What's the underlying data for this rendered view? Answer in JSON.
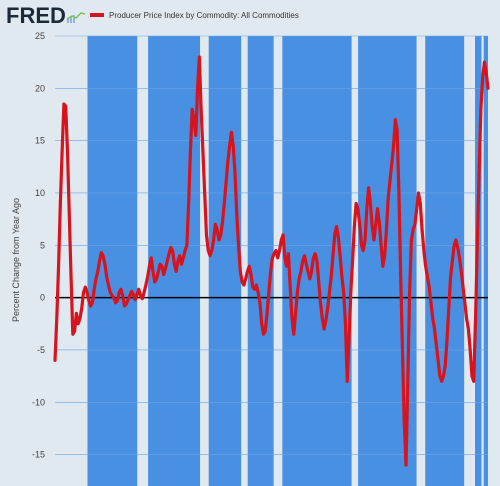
{
  "header": {
    "logo_text": "FRED",
    "logo_icon": "chart-logo-icon"
  },
  "chart_data": {
    "type": "line",
    "title": "",
    "xlabel": "",
    "ylabel": "Percent Change from Year Ago",
    "ylim": [
      -18,
      25
    ],
    "yticks": [
      25,
      20,
      15,
      10,
      5,
      0,
      -5,
      -10,
      -15
    ],
    "grid": true,
    "legend_position": "top-left",
    "background_color": "#4a90e2",
    "line_color": "#d6141e",
    "recession_color": "#e1e9f0",
    "series": [
      {
        "name": "Producer Price Index by Commodity: All Commodities",
        "values": [
          -6.0,
          -2.0,
          3.0,
          9.0,
          14.0,
          18.5,
          18.3,
          14.0,
          8.0,
          2.0,
          -3.5,
          -3.2,
          -1.5,
          -2.5,
          -2.0,
          -1.0,
          0.5,
          1.0,
          0.5,
          -0.3,
          -0.8,
          -0.5,
          0.8,
          1.8,
          2.5,
          3.5,
          4.3,
          4.0,
          3.2,
          2.0,
          1.2,
          0.5,
          0.2,
          0.0,
          -0.5,
          -0.3,
          0.5,
          0.8,
          0.2,
          -0.8,
          -0.6,
          -0.2,
          0.2,
          0.6,
          0.3,
          -0.2,
          0.3,
          0.8,
          0.2,
          -0.1,
          0.5,
          1.2,
          2.0,
          3.0,
          3.8,
          2.5,
          1.5,
          1.8,
          2.5,
          3.2,
          3.0,
          2.2,
          2.8,
          3.5,
          4.2,
          4.8,
          4.5,
          3.2,
          2.5,
          3.5,
          4.0,
          3.2,
          3.8,
          4.5,
          5.0,
          9.0,
          14.0,
          18.0,
          17.0,
          15.5,
          20.0,
          23.0,
          18.0,
          14.0,
          10.0,
          6.0,
          4.5,
          4.0,
          4.5,
          5.5,
          7.0,
          6.5,
          5.5,
          6.0,
          7.2,
          9.0,
          11.0,
          13.0,
          14.5,
          15.8,
          14.5,
          12.0,
          8.0,
          5.0,
          2.5,
          1.5,
          1.2,
          1.8,
          2.5,
          3.0,
          2.2,
          1.0,
          0.8,
          1.2,
          0.5,
          -0.5,
          -2.5,
          -3.5,
          -3.2,
          -1.5,
          0.5,
          2.5,
          3.8,
          4.2,
          4.5,
          3.8,
          4.5,
          5.5,
          6.0,
          3.8,
          3.0,
          4.2,
          1.0,
          -2.0,
          -3.5,
          -1.5,
          0.5,
          1.8,
          2.5,
          3.5,
          4.0,
          3.2,
          2.5,
          1.8,
          2.5,
          3.8,
          4.2,
          3.5,
          1.5,
          -0.5,
          -2.0,
          -3.0,
          -2.2,
          -1.0,
          0.5,
          2.0,
          4.0,
          6.0,
          6.8,
          5.8,
          4.0,
          2.0,
          0.5,
          -2.5,
          -8.0,
          -4.0,
          0.5,
          3.5,
          6.8,
          9.0,
          8.5,
          7.0,
          5.0,
          4.5,
          5.5,
          8.5,
          10.5,
          9.0,
          6.8,
          5.5,
          7.0,
          8.5,
          7.2,
          5.0,
          3.0,
          4.0,
          6.5,
          9.5,
          11.2,
          12.8,
          14.5,
          17.0,
          16.0,
          10.0,
          2.0,
          -5.0,
          -12.0,
          -16.0,
          -8.0,
          0.5,
          5.5,
          6.5,
          7.0,
          8.5,
          10.0,
          9.0,
          6.5,
          4.5,
          3.0,
          2.0,
          1.0,
          -0.5,
          -2.0,
          -3.0,
          -4.5,
          -6.0,
          -7.5,
          -8.0,
          -7.5,
          -6.5,
          -4.0,
          -1.0,
          2.0,
          3.5,
          5.0,
          5.5,
          4.8,
          3.8,
          2.5,
          1.0,
          -0.5,
          -2.0,
          -3.0,
          -5.0,
          -7.5,
          -8.0,
          -2.0,
          5.0,
          12.0,
          18.0,
          21.0,
          22.5,
          21.5,
          20.0
        ]
      }
    ],
    "recessions": [
      [
        0.0,
        0.075
      ],
      [
        0.19,
        0.215
      ],
      [
        0.335,
        0.355
      ],
      [
        0.43,
        0.445
      ],
      [
        0.505,
        0.525
      ],
      [
        0.685,
        0.7
      ],
      [
        0.835,
        0.855
      ],
      [
        0.945,
        0.97
      ],
      [
        0.985,
        0.99
      ]
    ]
  }
}
